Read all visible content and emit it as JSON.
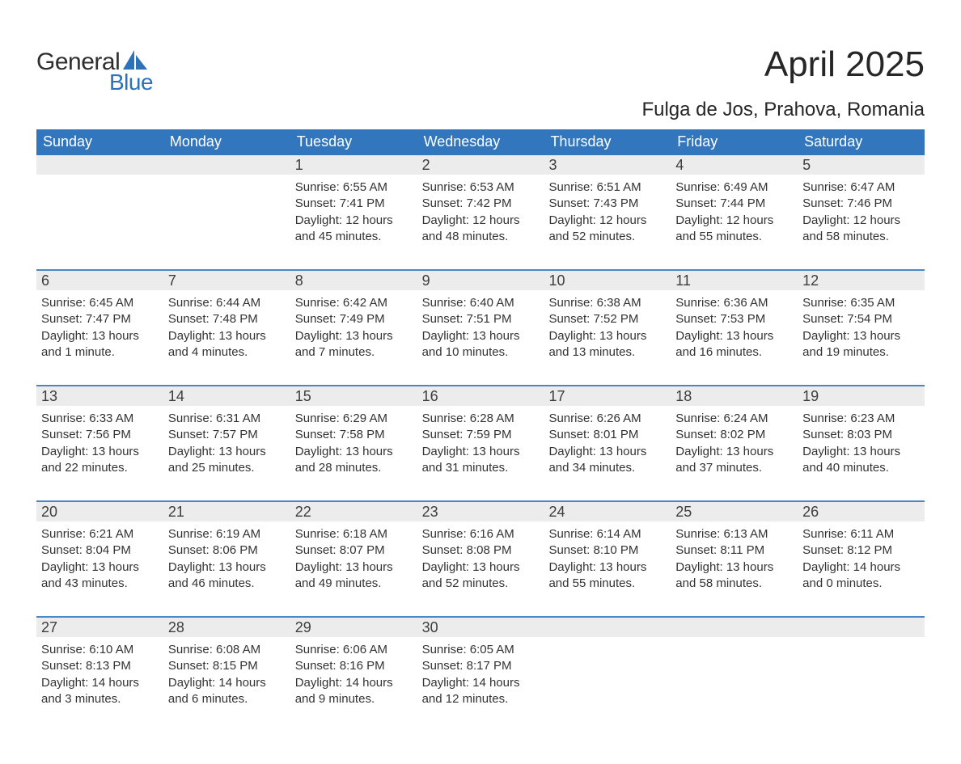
{
  "brand": {
    "word1": "General",
    "word2": "Blue",
    "sail_color": "#2b72b9",
    "text_dark": "#2f2f2f"
  },
  "title": "April 2025",
  "location": "Fulga de Jos, Prahova, Romania",
  "colors": {
    "header_bg": "#3277bd",
    "header_text": "#ffffff",
    "daynum_bg": "#ececec",
    "row_divider": "#4a86c5",
    "body_text": "#333333",
    "page_bg": "#ffffff"
  },
  "days_of_week": [
    "Sunday",
    "Monday",
    "Tuesday",
    "Wednesday",
    "Thursday",
    "Friday",
    "Saturday"
  ],
  "weeks": [
    [
      {
        "n": "",
        "sunrise": "",
        "sunset": "",
        "daylight1": "",
        "daylight2": ""
      },
      {
        "n": "",
        "sunrise": "",
        "sunset": "",
        "daylight1": "",
        "daylight2": ""
      },
      {
        "n": "1",
        "sunrise": "Sunrise: 6:55 AM",
        "sunset": "Sunset: 7:41 PM",
        "daylight1": "Daylight: 12 hours",
        "daylight2": "and 45 minutes."
      },
      {
        "n": "2",
        "sunrise": "Sunrise: 6:53 AM",
        "sunset": "Sunset: 7:42 PM",
        "daylight1": "Daylight: 12 hours",
        "daylight2": "and 48 minutes."
      },
      {
        "n": "3",
        "sunrise": "Sunrise: 6:51 AM",
        "sunset": "Sunset: 7:43 PM",
        "daylight1": "Daylight: 12 hours",
        "daylight2": "and 52 minutes."
      },
      {
        "n": "4",
        "sunrise": "Sunrise: 6:49 AM",
        "sunset": "Sunset: 7:44 PM",
        "daylight1": "Daylight: 12 hours",
        "daylight2": "and 55 minutes."
      },
      {
        "n": "5",
        "sunrise": "Sunrise: 6:47 AM",
        "sunset": "Sunset: 7:46 PM",
        "daylight1": "Daylight: 12 hours",
        "daylight2": "and 58 minutes."
      }
    ],
    [
      {
        "n": "6",
        "sunrise": "Sunrise: 6:45 AM",
        "sunset": "Sunset: 7:47 PM",
        "daylight1": "Daylight: 13 hours",
        "daylight2": "and 1 minute."
      },
      {
        "n": "7",
        "sunrise": "Sunrise: 6:44 AM",
        "sunset": "Sunset: 7:48 PM",
        "daylight1": "Daylight: 13 hours",
        "daylight2": "and 4 minutes."
      },
      {
        "n": "8",
        "sunrise": "Sunrise: 6:42 AM",
        "sunset": "Sunset: 7:49 PM",
        "daylight1": "Daylight: 13 hours",
        "daylight2": "and 7 minutes."
      },
      {
        "n": "9",
        "sunrise": "Sunrise: 6:40 AM",
        "sunset": "Sunset: 7:51 PM",
        "daylight1": "Daylight: 13 hours",
        "daylight2": "and 10 minutes."
      },
      {
        "n": "10",
        "sunrise": "Sunrise: 6:38 AM",
        "sunset": "Sunset: 7:52 PM",
        "daylight1": "Daylight: 13 hours",
        "daylight2": "and 13 minutes."
      },
      {
        "n": "11",
        "sunrise": "Sunrise: 6:36 AM",
        "sunset": "Sunset: 7:53 PM",
        "daylight1": "Daylight: 13 hours",
        "daylight2": "and 16 minutes."
      },
      {
        "n": "12",
        "sunrise": "Sunrise: 6:35 AM",
        "sunset": "Sunset: 7:54 PM",
        "daylight1": "Daylight: 13 hours",
        "daylight2": "and 19 minutes."
      }
    ],
    [
      {
        "n": "13",
        "sunrise": "Sunrise: 6:33 AM",
        "sunset": "Sunset: 7:56 PM",
        "daylight1": "Daylight: 13 hours",
        "daylight2": "and 22 minutes."
      },
      {
        "n": "14",
        "sunrise": "Sunrise: 6:31 AM",
        "sunset": "Sunset: 7:57 PM",
        "daylight1": "Daylight: 13 hours",
        "daylight2": "and 25 minutes."
      },
      {
        "n": "15",
        "sunrise": "Sunrise: 6:29 AM",
        "sunset": "Sunset: 7:58 PM",
        "daylight1": "Daylight: 13 hours",
        "daylight2": "and 28 minutes."
      },
      {
        "n": "16",
        "sunrise": "Sunrise: 6:28 AM",
        "sunset": "Sunset: 7:59 PM",
        "daylight1": "Daylight: 13 hours",
        "daylight2": "and 31 minutes."
      },
      {
        "n": "17",
        "sunrise": "Sunrise: 6:26 AM",
        "sunset": "Sunset: 8:01 PM",
        "daylight1": "Daylight: 13 hours",
        "daylight2": "and 34 minutes."
      },
      {
        "n": "18",
        "sunrise": "Sunrise: 6:24 AM",
        "sunset": "Sunset: 8:02 PM",
        "daylight1": "Daylight: 13 hours",
        "daylight2": "and 37 minutes."
      },
      {
        "n": "19",
        "sunrise": "Sunrise: 6:23 AM",
        "sunset": "Sunset: 8:03 PM",
        "daylight1": "Daylight: 13 hours",
        "daylight2": "and 40 minutes."
      }
    ],
    [
      {
        "n": "20",
        "sunrise": "Sunrise: 6:21 AM",
        "sunset": "Sunset: 8:04 PM",
        "daylight1": "Daylight: 13 hours",
        "daylight2": "and 43 minutes."
      },
      {
        "n": "21",
        "sunrise": "Sunrise: 6:19 AM",
        "sunset": "Sunset: 8:06 PM",
        "daylight1": "Daylight: 13 hours",
        "daylight2": "and 46 minutes."
      },
      {
        "n": "22",
        "sunrise": "Sunrise: 6:18 AM",
        "sunset": "Sunset: 8:07 PM",
        "daylight1": "Daylight: 13 hours",
        "daylight2": "and 49 minutes."
      },
      {
        "n": "23",
        "sunrise": "Sunrise: 6:16 AM",
        "sunset": "Sunset: 8:08 PM",
        "daylight1": "Daylight: 13 hours",
        "daylight2": "and 52 minutes."
      },
      {
        "n": "24",
        "sunrise": "Sunrise: 6:14 AM",
        "sunset": "Sunset: 8:10 PM",
        "daylight1": "Daylight: 13 hours",
        "daylight2": "and 55 minutes."
      },
      {
        "n": "25",
        "sunrise": "Sunrise: 6:13 AM",
        "sunset": "Sunset: 8:11 PM",
        "daylight1": "Daylight: 13 hours",
        "daylight2": "and 58 minutes."
      },
      {
        "n": "26",
        "sunrise": "Sunrise: 6:11 AM",
        "sunset": "Sunset: 8:12 PM",
        "daylight1": "Daylight: 14 hours",
        "daylight2": "and 0 minutes."
      }
    ],
    [
      {
        "n": "27",
        "sunrise": "Sunrise: 6:10 AM",
        "sunset": "Sunset: 8:13 PM",
        "daylight1": "Daylight: 14 hours",
        "daylight2": "and 3 minutes."
      },
      {
        "n": "28",
        "sunrise": "Sunrise: 6:08 AM",
        "sunset": "Sunset: 8:15 PM",
        "daylight1": "Daylight: 14 hours",
        "daylight2": "and 6 minutes."
      },
      {
        "n": "29",
        "sunrise": "Sunrise: 6:06 AM",
        "sunset": "Sunset: 8:16 PM",
        "daylight1": "Daylight: 14 hours",
        "daylight2": "and 9 minutes."
      },
      {
        "n": "30",
        "sunrise": "Sunrise: 6:05 AM",
        "sunset": "Sunset: 8:17 PM",
        "daylight1": "Daylight: 14 hours",
        "daylight2": "and 12 minutes."
      },
      {
        "n": "",
        "sunrise": "",
        "sunset": "",
        "daylight1": "",
        "daylight2": ""
      },
      {
        "n": "",
        "sunrise": "",
        "sunset": "",
        "daylight1": "",
        "daylight2": ""
      },
      {
        "n": "",
        "sunrise": "",
        "sunset": "",
        "daylight1": "",
        "daylight2": ""
      }
    ]
  ]
}
